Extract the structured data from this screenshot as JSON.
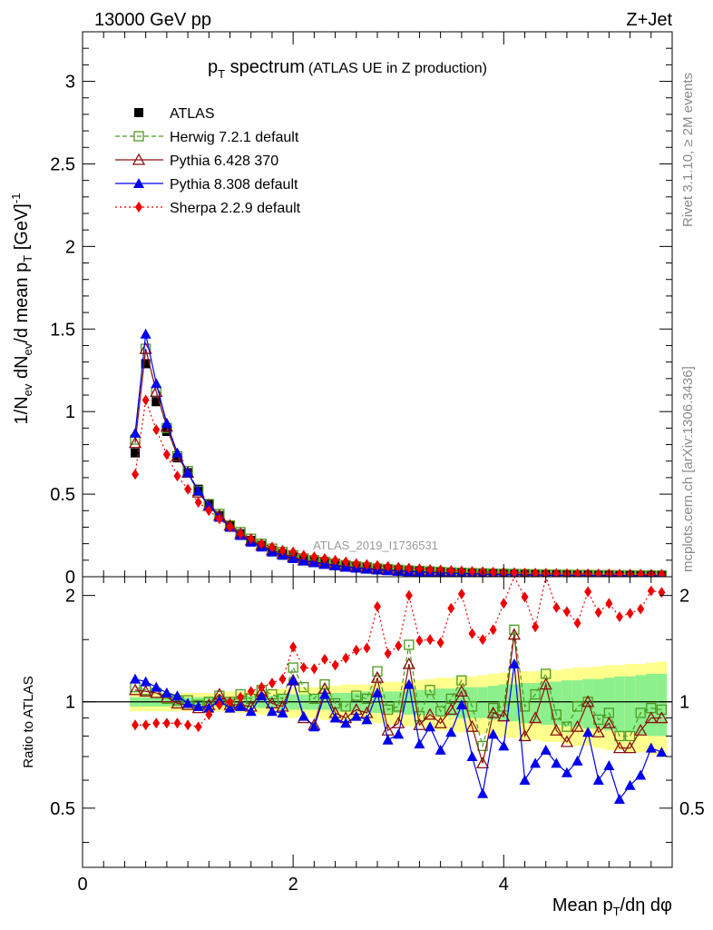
{
  "header": {
    "left": "13000 GeV pp",
    "right": "Z+Jet"
  },
  "side_labels": {
    "rivet": "Rivet 3.1.10, ≥ 2M events",
    "mcplots": "mcplots.cern.ch [arXiv:1306.3436]"
  },
  "chart_data": [
    {
      "type": "line",
      "title": "p",
      "title_sub": "T",
      "title_rest": " spectrum",
      "subtitle": "(ATLAS UE in Z production)",
      "watermark": "ATLAS_2019_I1736531",
      "ylabel": "1/N_ev dN_ev/d mean p_T [GeV]^-1",
      "xlim": [
        0,
        5.6
      ],
      "ylim": [
        0,
        3.3
      ],
      "yticks": [
        0,
        0.5,
        1,
        1.5,
        2,
        2.5,
        3
      ],
      "ytick_labels": [
        "0",
        "0.5",
        "1",
        "1.5",
        "2",
        "2.5",
        "3"
      ],
      "x": [
        0.5,
        0.6,
        0.7,
        0.8,
        0.9,
        1.0,
        1.1,
        1.2,
        1.3,
        1.4,
        1.5,
        1.6,
        1.7,
        1.8,
        1.9,
        2.0,
        2.1,
        2.2,
        2.3,
        2.4,
        2.5,
        2.6,
        2.7,
        2.8,
        2.9,
        3.0,
        3.1,
        3.2,
        3.3,
        3.4,
        3.5,
        3.6,
        3.7,
        3.8,
        3.9,
        4.0,
        4.1,
        4.2,
        4.3,
        4.4,
        4.5,
        4.6,
        4.7,
        4.8,
        4.9,
        5.0,
        5.1,
        5.2,
        5.3,
        5.4,
        5.5
      ],
      "series": [
        {
          "name": "ATLAS",
          "color": "#000000",
          "marker": "square-filled",
          "dash": "none",
          "values": [
            0.75,
            1.29,
            1.06,
            0.88,
            0.72,
            0.63,
            0.53,
            0.44,
            0.37,
            0.31,
            0.26,
            0.22,
            0.19,
            0.16,
            0.14,
            0.12,
            0.105,
            0.095,
            0.085,
            0.075,
            0.067,
            0.06,
            0.054,
            0.048,
            0.044,
            0.04,
            0.036,
            0.033,
            0.03,
            0.027,
            0.025,
            0.022,
            0.021,
            0.019,
            0.018,
            0.016,
            0.015,
            0.014,
            0.013,
            0.012,
            0.011,
            0.011,
            0.01,
            0.01,
            0.009,
            0.009,
            0.008,
            0.008,
            0.008,
            0.007,
            0.007
          ]
        },
        {
          "name": "Herwig 7.2.1 default",
          "color": "#4c9a1e",
          "marker": "square-open",
          "dash": "5,3",
          "values": [
            0.83,
            1.38,
            1.12,
            0.9,
            0.73,
            0.64,
            0.52,
            0.44,
            0.38,
            0.31,
            0.27,
            0.23,
            0.2,
            0.17,
            0.15,
            0.13,
            0.11,
            0.1,
            0.09,
            0.08,
            0.07,
            0.063,
            0.057,
            0.05,
            0.046,
            0.042,
            0.038,
            0.035,
            0.032,
            0.029,
            0.026,
            0.024,
            0.022,
            0.021,
            0.019,
            0.018,
            0.017,
            0.016,
            0.015,
            0.014,
            0.013,
            0.012,
            0.011,
            0.011,
            0.01,
            0.01,
            0.009,
            0.009,
            0.008,
            0.008,
            0.008
          ]
        },
        {
          "name": "Pythia 6.428 370",
          "color": "#8b1010",
          "marker": "triangle-open",
          "dash": "none",
          "values": [
            0.81,
            1.38,
            1.12,
            0.91,
            0.73,
            0.63,
            0.51,
            0.43,
            0.37,
            0.31,
            0.26,
            0.22,
            0.19,
            0.16,
            0.14,
            0.12,
            0.1,
            0.09,
            0.08,
            0.07,
            0.063,
            0.057,
            0.051,
            0.046,
            0.042,
            0.038,
            0.035,
            0.031,
            0.028,
            0.026,
            0.023,
            0.021,
            0.019,
            0.018,
            0.016,
            0.015,
            0.014,
            0.013,
            0.012,
            0.011,
            0.01,
            0.01,
            0.009,
            0.009,
            0.008,
            0.008,
            0.007,
            0.007,
            0.007,
            0.006,
            0.006
          ]
        },
        {
          "name": "Pythia 8.308 default",
          "color": "#0000ee",
          "marker": "triangle-filled",
          "dash": "none",
          "values": [
            0.87,
            1.47,
            1.17,
            0.93,
            0.75,
            0.63,
            0.52,
            0.43,
            0.36,
            0.3,
            0.25,
            0.21,
            0.18,
            0.15,
            0.13,
            0.11,
            0.095,
            0.085,
            0.075,
            0.066,
            0.058,
            0.052,
            0.046,
            0.041,
            0.037,
            0.034,
            0.031,
            0.028,
            0.025,
            0.023,
            0.021,
            0.019,
            0.017,
            0.016,
            0.014,
            0.013,
            0.012,
            0.011,
            0.01,
            0.01,
            0.009,
            0.008,
            0.008,
            0.007,
            0.007,
            0.006,
            0.006,
            0.006,
            0.005,
            0.005,
            0.005
          ]
        },
        {
          "name": "Sherpa 2.2.9 default",
          "color": "#ee0000",
          "marker": "diamond-filled",
          "dash": "2,3",
          "values": [
            0.62,
            1.07,
            0.89,
            0.74,
            0.61,
            0.53,
            0.45,
            0.4,
            0.35,
            0.3,
            0.26,
            0.23,
            0.2,
            0.18,
            0.16,
            0.15,
            0.13,
            0.12,
            0.11,
            0.1,
            0.09,
            0.08,
            0.074,
            0.068,
            0.062,
            0.057,
            0.052,
            0.048,
            0.044,
            0.041,
            0.038,
            0.035,
            0.032,
            0.03,
            0.028,
            0.026,
            0.025,
            0.023,
            0.022,
            0.021,
            0.02,
            0.019,
            0.018,
            0.018,
            0.017,
            0.017,
            0.016,
            0.016,
            0.015,
            0.015,
            0.015
          ]
        }
      ]
    },
    {
      "type": "line",
      "ylabel": "Ratio to ATLAS",
      "xlabel": "Mean p_T/dη dφ",
      "xlim": [
        0,
        5.6
      ],
      "ylim": [
        0.34,
        2.26
      ],
      "xticks": [
        0,
        2,
        4
      ],
      "xtick_labels": [
        "0",
        "2",
        "4"
      ],
      "yticks": [
        0.5,
        1,
        2
      ],
      "ytick_labels": [
        "0.5",
        "1",
        "2"
      ],
      "reference_line": 1,
      "band_inner": [
        0.03,
        0.03,
        0.03,
        0.03,
        0.03,
        0.03,
        0.03,
        0.03,
        0.03,
        0.03,
        0.04,
        0.04,
        0.04,
        0.04,
        0.05,
        0.05,
        0.05,
        0.05,
        0.05,
        0.06,
        0.06,
        0.06,
        0.07,
        0.07,
        0.07,
        0.07,
        0.08,
        0.08,
        0.08,
        0.09,
        0.09,
        0.1,
        0.1,
        0.1,
        0.11,
        0.12,
        0.12,
        0.13,
        0.13,
        0.14,
        0.14,
        0.15,
        0.15,
        0.16,
        0.16,
        0.17,
        0.18,
        0.18,
        0.19,
        0.2,
        0.2
      ],
      "band_outer": [
        0.06,
        0.06,
        0.06,
        0.06,
        0.06,
        0.06,
        0.06,
        0.06,
        0.06,
        0.07,
        0.07,
        0.07,
        0.08,
        0.08,
        0.09,
        0.1,
        0.1,
        0.1,
        0.11,
        0.11,
        0.12,
        0.12,
        0.12,
        0.13,
        0.14,
        0.14,
        0.15,
        0.15,
        0.16,
        0.17,
        0.17,
        0.18,
        0.18,
        0.19,
        0.2,
        0.21,
        0.21,
        0.22,
        0.22,
        0.23,
        0.23,
        0.24,
        0.25,
        0.25,
        0.26,
        0.27,
        0.27,
        0.28,
        0.28,
        0.29,
        0.3
      ],
      "series": [
        {
          "name": "Herwig 7.2.1 default",
          "color": "#4c9a1e",
          "values": [
            1.1,
            1.08,
            1.06,
            1.02,
            1.01,
            1.01,
            0.98,
            1.0,
            1.04,
            1.0,
            1.05,
            1.02,
            1.08,
            1.05,
            1.02,
            1.25,
            1.1,
            1.02,
            1.12,
            0.99,
            0.97,
            1.04,
            1.02,
            1.22,
            0.95,
            0.97,
            1.45,
            0.91,
            1.08,
            0.94,
            1.02,
            1.15,
            0.97,
            0.75,
            0.96,
            0.97,
            1.6,
            0.97,
            1.05,
            1.2,
            0.92,
            0.85,
            0.97,
            1.0,
            0.89,
            0.93,
            0.8,
            0.8,
            0.93,
            0.96,
            0.95
          ]
        },
        {
          "name": "Pythia 6.428 370",
          "color": "#8b1010",
          "values": [
            1.08,
            1.07,
            1.06,
            1.03,
            0.99,
            0.98,
            0.96,
            0.98,
            1.05,
            0.98,
            0.98,
            0.97,
            1.07,
            0.99,
            0.97,
            1.15,
            0.9,
            0.86,
            1.09,
            0.93,
            0.9,
            0.95,
            0.93,
            1.17,
            0.83,
            0.87,
            1.28,
            0.86,
            0.92,
            0.87,
            0.95,
            1.07,
            0.85,
            0.67,
            0.93,
            0.91,
            1.55,
            0.8,
            0.9,
            1.12,
            0.83,
            0.77,
            0.85,
            1.0,
            0.82,
            0.87,
            0.74,
            0.74,
            0.83,
            0.9,
            0.9
          ]
        },
        {
          "name": "Pythia 8.308 default",
          "color": "#0000ee",
          "values": [
            1.16,
            1.14,
            1.1,
            1.06,
            1.04,
            0.99,
            0.97,
            0.96,
            1.01,
            0.96,
            0.97,
            0.94,
            1.04,
            0.94,
            0.93,
            1.15,
            0.91,
            0.85,
            1.05,
            0.9,
            0.87,
            0.91,
            0.89,
            1.06,
            0.78,
            0.81,
            1.12,
            0.76,
            0.85,
            0.73,
            0.82,
            0.98,
            0.7,
            0.55,
            0.81,
            0.75,
            1.28,
            0.6,
            0.67,
            0.73,
            0.67,
            0.63,
            0.68,
            0.82,
            0.6,
            0.66,
            0.53,
            0.58,
            0.62,
            0.74,
            0.72
          ]
        },
        {
          "name": "Sherpa 2.2.9 default",
          "color": "#ee0000",
          "values": [
            0.86,
            0.86,
            0.87,
            0.87,
            0.87,
            0.86,
            0.85,
            0.92,
            0.98,
            1.0,
            1.03,
            1.07,
            1.1,
            1.13,
            1.16,
            1.43,
            1.25,
            1.24,
            1.32,
            1.27,
            1.33,
            1.4,
            1.42,
            1.86,
            1.37,
            1.44,
            2.0,
            1.49,
            1.5,
            1.47,
            1.84,
            2.02,
            1.56,
            1.5,
            1.6,
            1.9,
            2.4,
            1.98,
            1.63,
            2.3,
            1.85,
            1.8,
            1.67,
            2.05,
            1.79,
            1.9,
            1.74,
            1.78,
            1.83,
            2.06,
            2.04
          ]
        }
      ]
    }
  ]
}
